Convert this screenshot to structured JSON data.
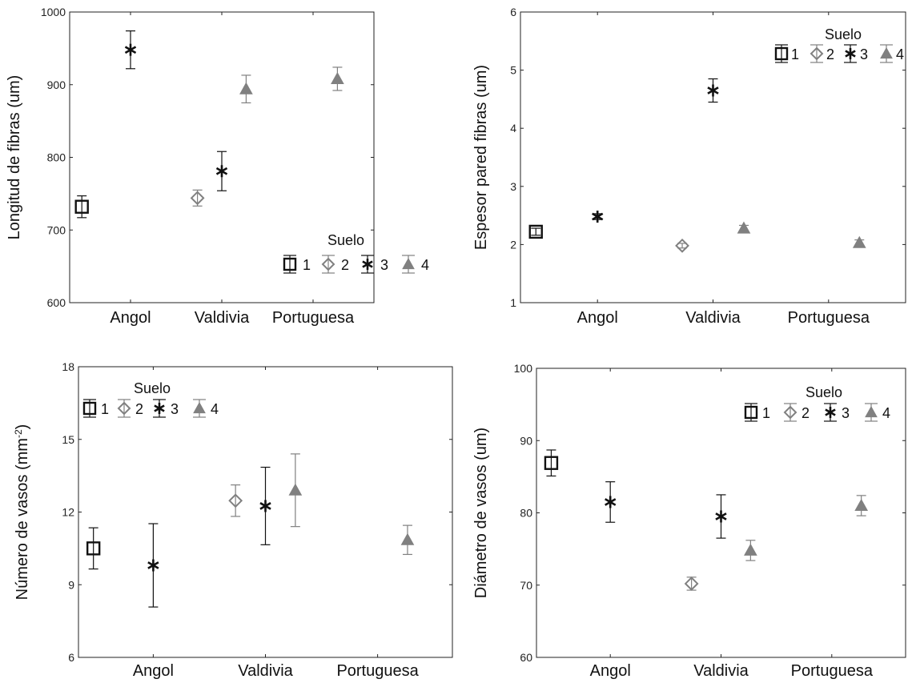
{
  "colors": {
    "axis": "#222222",
    "black": "#111111",
    "gray": "#808080",
    "background": "#ffffff"
  },
  "chart_data": [
    {
      "type": "scatter",
      "ylabel": "Longitud de fibras (um)",
      "categories": [
        "Angol",
        "Valdivia",
        "Portuguesa"
      ],
      "ylim": [
        600,
        1000
      ],
      "yticks": [
        600,
        700,
        800,
        900,
        1000
      ],
      "ytick_labels": [
        "600",
        "700",
        "800",
        "900",
        "1000"
      ],
      "grid": false,
      "legend": {
        "title": "Suelo",
        "placement": "bottom-right",
        "labels": [
          "1",
          "2",
          "3",
          "4"
        ]
      },
      "series": [
        {
          "name": "1",
          "points": [
            {
              "category": "Angol",
              "y": 732,
              "err": 15
            }
          ]
        },
        {
          "name": "2",
          "points": [
            {
              "category": "Valdivia",
              "y": 744,
              "err": 11
            }
          ]
        },
        {
          "name": "3",
          "points": [
            {
              "category": "Angol",
              "y": 948,
              "err": 26
            },
            {
              "category": "Valdivia",
              "y": 781,
              "err": 27
            }
          ]
        },
        {
          "name": "4",
          "points": [
            {
              "category": "Valdivia",
              "y": 894,
              "err": 19
            },
            {
              "category": "Portuguesa",
              "y": 908,
              "err": 16
            }
          ]
        }
      ]
    },
    {
      "type": "scatter",
      "ylabel": "Espesor pared fibras (um)",
      "categories": [
        "Angol",
        "Valdivia",
        "Portuguesa"
      ],
      "ylim": [
        1,
        6
      ],
      "yticks": [
        1,
        2,
        3,
        4,
        5,
        6
      ],
      "ytick_labels": [
        "1",
        "2",
        "3",
        "4",
        "5",
        "6"
      ],
      "grid": false,
      "legend": {
        "title": "Suelo",
        "placement": "top-right",
        "labels": [
          "1",
          "2",
          "3",
          "4"
        ]
      },
      "series": [
        {
          "name": "1",
          "points": [
            {
              "category": "Angol",
              "y": 2.22,
              "err": 0.06
            }
          ]
        },
        {
          "name": "2",
          "points": [
            {
              "category": "Valdivia",
              "y": 1.98,
              "err": 0.04
            }
          ]
        },
        {
          "name": "3",
          "points": [
            {
              "category": "Angol",
              "y": 2.48,
              "err": 0.05
            },
            {
              "category": "Valdivia",
              "y": 4.65,
              "err": 0.2
            }
          ]
        },
        {
          "name": "4",
          "points": [
            {
              "category": "Valdivia",
              "y": 2.28,
              "err": 0.05
            },
            {
              "category": "Portuguesa",
              "y": 2.03,
              "err": 0.05
            }
          ]
        }
      ]
    },
    {
      "type": "scatter",
      "ylabel": "Número de vasos (mm",
      "ylabel_sup": "-2",
      "ylabel_suffix": ")",
      "categories": [
        "Angol",
        "Valdivia",
        "Portuguesa"
      ],
      "ylim": [
        6,
        18
      ],
      "yticks": [
        6,
        9,
        12,
        15,
        18
      ],
      "ytick_labels": [
        "6",
        "9",
        "12",
        "15",
        "18"
      ],
      "grid": false,
      "legend": {
        "title": "Suelo",
        "placement": "top-left",
        "labels": [
          "1",
          "2",
          "3",
          "4"
        ]
      },
      "series": [
        {
          "name": "1",
          "points": [
            {
              "category": "Angol",
              "y": 10.5,
              "err": 0.85
            }
          ]
        },
        {
          "name": "2",
          "points": [
            {
              "category": "Valdivia",
              "y": 12.47,
              "err": 0.65
            }
          ]
        },
        {
          "name": "3",
          "points": [
            {
              "category": "Angol",
              "y": 9.8,
              "err": 1.72
            },
            {
              "category": "Valdivia",
              "y": 12.25,
              "err": 1.6
            }
          ]
        },
        {
          "name": "4",
          "points": [
            {
              "category": "Valdivia",
              "y": 12.9,
              "err": 1.5
            },
            {
              "category": "Portuguesa",
              "y": 10.85,
              "err": 0.6
            }
          ]
        }
      ]
    },
    {
      "type": "scatter",
      "ylabel": "Diámetro de vasos (um)",
      "categories": [
        "Angol",
        "Valdivia",
        "Portuguesa"
      ],
      "ylim": [
        60,
        100
      ],
      "yticks": [
        60,
        70,
        80,
        90,
        100
      ],
      "ytick_labels": [
        "60",
        "70",
        "80",
        "90",
        "100"
      ],
      "grid": false,
      "legend": {
        "title": "Suelo",
        "placement": "top-right",
        "labels": [
          "1",
          "2",
          "3",
          "4"
        ]
      },
      "series": [
        {
          "name": "1",
          "points": [
            {
              "category": "Angol",
              "y": 86.9,
              "err": 1.8
            }
          ]
        },
        {
          "name": "2",
          "points": [
            {
              "category": "Valdivia",
              "y": 70.2,
              "err": 0.9
            }
          ]
        },
        {
          "name": "3",
          "points": [
            {
              "category": "Angol",
              "y": 81.5,
              "err": 2.8
            },
            {
              "category": "Valdivia",
              "y": 79.5,
              "err": 3.0
            }
          ]
        },
        {
          "name": "4",
          "points": [
            {
              "category": "Valdivia",
              "y": 74.8,
              "err": 1.4
            },
            {
              "category": "Portuguesa",
              "y": 81.0,
              "err": 1.4
            }
          ]
        }
      ]
    }
  ]
}
